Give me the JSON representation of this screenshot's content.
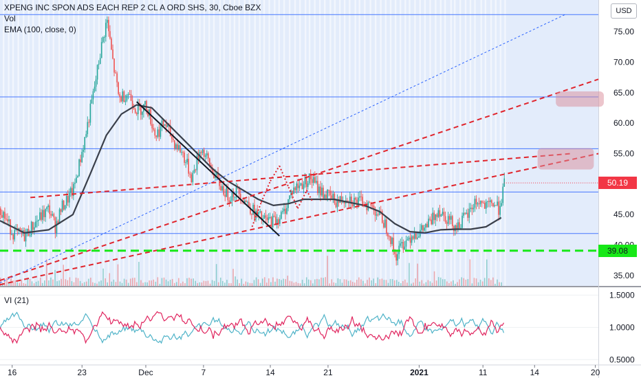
{
  "legend": {
    "title": "XPENG INC SPON ADS EACH REP 2 CL A ORD SHS, 30, Cboe BZX",
    "vol": "Vol",
    "ema": "EMA (100, close, 0)",
    "vi": "VI (21)"
  },
  "currency_button": "USD",
  "colors": {
    "up": "#26a69a",
    "down": "#ef5350",
    "ema": "#3a3f4a",
    "trend_red": "#e0242c",
    "green_line": "#17e817",
    "blue_line": "#2962ff",
    "vi_plus": "#4fb3c8",
    "vi_minus": "#e0245e",
    "price_tag": "#f23645",
    "green_tag": "#17e817"
  },
  "chart_data": {
    "type": "candlestick",
    "main_pane": {
      "y_ticks": [
        "75.00",
        "70.00",
        "65.00",
        "60.00",
        "55.00",
        "50.00",
        "45.00",
        "40.00",
        "35.00"
      ],
      "y_tick_values": [
        75,
        70,
        65,
        60,
        55,
        50,
        45,
        40,
        35
      ],
      "ylim": [
        33.3,
        80.2
      ],
      "last_price": "50.19",
      "last_price_value": 50.19,
      "support_label": "39.08",
      "support_value": 39.08,
      "horizontal_levels": [
        77.8,
        64.3,
        55.8,
        48.7,
        41.9
      ],
      "close_path": [
        [
          0,
          46
        ],
        [
          4,
          42
        ],
        [
          8,
          41.5
        ],
        [
          12,
          44
        ],
        [
          16,
          46
        ],
        [
          18,
          43
        ],
        [
          20,
          46
        ],
        [
          24,
          49
        ],
        [
          28,
          58
        ],
        [
          31,
          66
        ],
        [
          33,
          72
        ],
        [
          35,
          77
        ],
        [
          37,
          70
        ],
        [
          39,
          64
        ],
        [
          42,
          65
        ],
        [
          45,
          62
        ],
        [
          48,
          63
        ],
        [
          51,
          58
        ],
        [
          54,
          60
        ],
        [
          57,
          57
        ],
        [
          60,
          55
        ],
        [
          63,
          51
        ],
        [
          66,
          56
        ],
        [
          69,
          53
        ],
        [
          72,
          50
        ],
        [
          75,
          48
        ],
        [
          78,
          49
        ],
        [
          81,
          47
        ],
        [
          84,
          45
        ],
        [
          87,
          44
        ],
        [
          90,
          44
        ],
        [
          93,
          45
        ],
        [
          96,
          49
        ],
        [
          99,
          50
        ],
        [
          102,
          51
        ],
        [
          105,
          49
        ],
        [
          108,
          48
        ],
        [
          111,
          47
        ],
        [
          114,
          48
        ],
        [
          117,
          47
        ],
        [
          120,
          47
        ],
        [
          123,
          46
        ],
        [
          126,
          44
        ],
        [
          128,
          42
        ],
        [
          130,
          38
        ],
        [
          132,
          40
        ],
        [
          134,
          41
        ],
        [
          136,
          42
        ],
        [
          138,
          42
        ],
        [
          140,
          43
        ],
        [
          142,
          44
        ],
        [
          144,
          46
        ],
        [
          146,
          45
        ],
        [
          148,
          44
        ],
        [
          150,
          43
        ],
        [
          152,
          44
        ],
        [
          154,
          45
        ],
        [
          156,
          47
        ],
        [
          158,
          47
        ],
        [
          160,
          46
        ],
        [
          162,
          47
        ],
        [
          164,
          46
        ],
        [
          165,
          48
        ],
        [
          166,
          50.19
        ]
      ],
      "ema_path": [
        [
          0,
          44
        ],
        [
          8,
          42
        ],
        [
          16,
          42.5
        ],
        [
          24,
          45
        ],
        [
          30,
          52
        ],
        [
          35,
          58
        ],
        [
          40,
          61.5
        ],
        [
          45,
          63
        ],
        [
          50,
          62.5
        ],
        [
          55,
          60
        ],
        [
          60,
          57.5
        ],
        [
          65,
          55
        ],
        [
          70,
          52.5
        ],
        [
          75,
          50.5
        ],
        [
          80,
          49
        ],
        [
          85,
          47.5
        ],
        [
          90,
          46.5
        ],
        [
          95,
          46.8
        ],
        [
          100,
          47.5
        ],
        [
          105,
          47.5
        ],
        [
          110,
          47.5
        ],
        [
          115,
          47
        ],
        [
          120,
          46.5
        ],
        [
          125,
          45.5
        ],
        [
          130,
          43.5
        ],
        [
          135,
          42.2
        ],
        [
          140,
          42
        ],
        [
          145,
          42.5
        ],
        [
          150,
          42.6
        ],
        [
          155,
          42.6
        ],
        [
          160,
          43
        ],
        [
          165,
          44.5
        ]
      ]
    },
    "vi_pane": {
      "series": [
        {
          "name": "VI+"
        },
        {
          "name": "VI-"
        }
      ],
      "y_ticks": [
        "1.5000",
        "1.0000",
        "0.5000"
      ],
      "y_tick_values": [
        1.5,
        1.0,
        0.5
      ],
      "ylim": [
        0.45,
        1.6
      ]
    },
    "x_ticks": [
      {
        "label": "16",
        "value": 4
      },
      {
        "label": "23",
        "value": 27
      },
      {
        "label": "Dec",
        "value": 48
      },
      {
        "label": "7",
        "value": 67
      },
      {
        "label": "14",
        "value": 89
      },
      {
        "label": "21",
        "value": 108
      },
      {
        "label": "2021",
        "value": 138
      },
      {
        "label": "11",
        "value": 159
      },
      {
        "label": "14",
        "value": 176
      },
      {
        "label": "20",
        "value": 196
      }
    ],
    "xlim": [
      0,
      197
    ],
    "grid": true
  }
}
